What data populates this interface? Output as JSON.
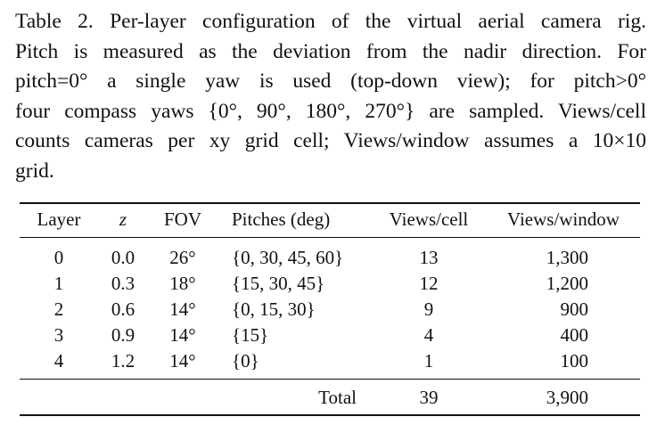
{
  "caption": {
    "lines": [
      "Table 2.  Per-layer configuration of the virtual aerial camera rig.",
      "Pitch is measured as the deviation from the nadir direction.  For",
      "pitch=0° a single yaw is used (top-down view); for pitch>0°",
      "four compass yaws {0°, 90°, 180°, 270°} are sampled. Views/cell",
      "counts cameras per xy grid cell; Views/window assumes a 10×10",
      "grid."
    ]
  },
  "table": {
    "header": [
      "Layer",
      "z",
      "FOV",
      "Pitches (deg)",
      "Views/cell",
      "Views/window"
    ],
    "rows": [
      [
        "0",
        "0.0",
        "26°",
        "{0, 30, 45, 60}",
        "13",
        "1,300"
      ],
      [
        "1",
        "0.3",
        "18°",
        "{15, 30, 45}",
        "12",
        "1,200"
      ],
      [
        "2",
        "0.6",
        "14°",
        "{0, 15, 30}",
        "9",
        "900"
      ],
      [
        "3",
        "0.9",
        "14°",
        "{15}",
        "4",
        "400"
      ],
      [
        "4",
        "1.2",
        "14°",
        "{0}",
        "1",
        "100"
      ]
    ],
    "total": {
      "label": "Total",
      "views_cell": "39",
      "views_window": "3,900"
    }
  }
}
